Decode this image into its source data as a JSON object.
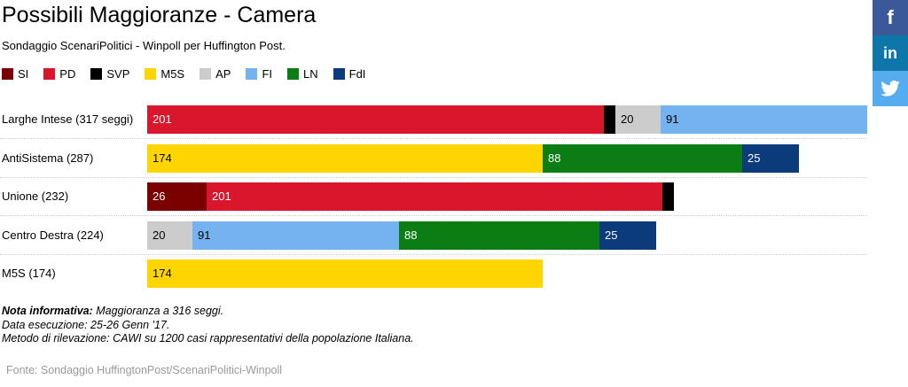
{
  "title": "Possibili Maggioranze - Camera",
  "subtitle": "Sondaggio ScenariPolitici - Winpoll per Huffington Post.",
  "chart_data": {
    "type": "bar",
    "orientation": "horizontal",
    "stacked": true,
    "legend_position": "top-left",
    "xlim": [
      0,
      317
    ],
    "parties": [
      {
        "name": "SI",
        "color": "#7b0000"
      },
      {
        "name": "PD",
        "color": "#d9162c"
      },
      {
        "name": "SVP",
        "color": "#000000"
      },
      {
        "name": "M5S",
        "color": "#ffd500"
      },
      {
        "name": "AP",
        "color": "#cccccc"
      },
      {
        "name": "FI",
        "color": "#74b3ef"
      },
      {
        "name": "LN",
        "color": "#0b7d14"
      },
      {
        "name": "FdI",
        "color": "#0c3b7c"
      }
    ],
    "rows": [
      {
        "label": "Larghe Intese (317 seggi)",
        "segments": [
          {
            "party": "PD",
            "value": 201,
            "label": "201",
            "text_color": "#ffffff"
          },
          {
            "party": "SVP",
            "value": 5,
            "label": "",
            "text_color": "#ffffff"
          },
          {
            "party": "AP",
            "value": 20,
            "label": "20",
            "text_color": "#000000"
          },
          {
            "party": "FI",
            "value": 91,
            "label": "91",
            "text_color": "#000000"
          }
        ]
      },
      {
        "label": "AntiSistema (287)",
        "segments": [
          {
            "party": "M5S",
            "value": 174,
            "label": "174",
            "text_color": "#000000"
          },
          {
            "party": "LN",
            "value": 88,
            "label": "88",
            "text_color": "#ffffff"
          },
          {
            "party": "FdI",
            "value": 25,
            "label": "25",
            "text_color": "#ffffff"
          }
        ]
      },
      {
        "label": "Unione (232)",
        "segments": [
          {
            "party": "SI",
            "value": 26,
            "label": "26",
            "text_color": "#ffffff"
          },
          {
            "party": "PD",
            "value": 201,
            "label": "201",
            "text_color": "#ffffff"
          },
          {
            "party": "SVP",
            "value": 5,
            "label": "",
            "text_color": "#ffffff"
          }
        ]
      },
      {
        "label": "Centro Destra (224)",
        "segments": [
          {
            "party": "AP",
            "value": 20,
            "label": "20",
            "text_color": "#000000"
          },
          {
            "party": "FI",
            "value": 91,
            "label": "91",
            "text_color": "#000000"
          },
          {
            "party": "LN",
            "value": 88,
            "label": "88",
            "text_color": "#ffffff"
          },
          {
            "party": "FdI",
            "value": 25,
            "label": "25",
            "text_color": "#ffffff"
          }
        ]
      },
      {
        "label": "M5S (174)",
        "segments": [
          {
            "party": "M5S",
            "value": 174,
            "label": "174",
            "text_color": "#000000"
          }
        ]
      }
    ]
  },
  "notes": {
    "line1_bold": "Nota informativa:",
    "line1_rest": " Maggioranza a 316 seggi.",
    "line2": "Data esecuzione: 25-26 Genn '17.",
    "line3": "Metodo di rilevazione: CAWI su 1200 casi rappresentativi della popolazione Italiana."
  },
  "source": "Fonte: Sondaggio HuffingtonPost/ScenariPolitici-Winpoll",
  "social": {
    "facebook_glyph": "f",
    "linkedin_glyph": "in"
  }
}
